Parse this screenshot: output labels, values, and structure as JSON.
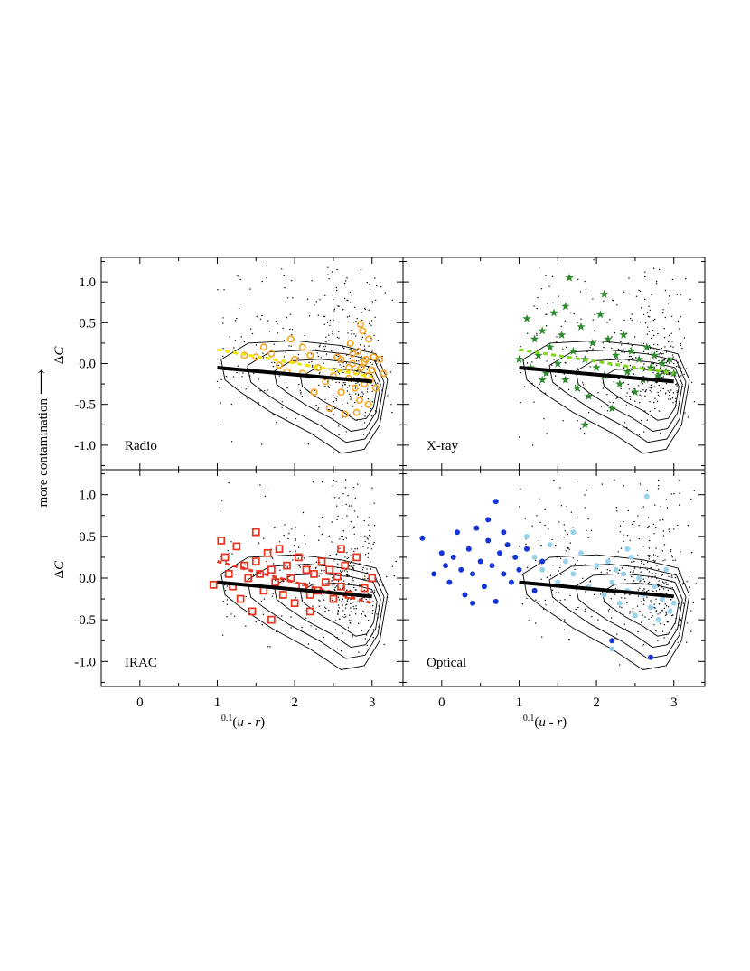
{
  "figure": {
    "side_label": "more contamination",
    "arrow_glyph": "⟶",
    "xlabel_prefix": "0.1",
    "xlabel_main": "(u - r)",
    "ylabel_main": "ΔC"
  },
  "chart_data": [
    {
      "type": "scatter",
      "panel": "top-left",
      "label": "Radio",
      "xlabel": "",
      "ylabel": "ΔC",
      "xlim": [
        -0.5,
        3.4
      ],
      "ylim": [
        -1.3,
        1.3
      ],
      "xticks": [],
      "yticks": [
        -1.0,
        -0.5,
        0.0,
        0.5,
        1.0
      ],
      "series": [
        {
          "marker": "open-circle",
          "color": "#f5a623",
          "points": [
            [
              1.35,
              0.1
            ],
            [
              1.5,
              0.08
            ],
            [
              1.7,
              0.12
            ],
            [
              1.8,
              -0.02
            ],
            [
              1.9,
              -0.1
            ],
            [
              2.0,
              0.05
            ],
            [
              2.1,
              -0.12
            ],
            [
              2.2,
              0.1
            ],
            [
              2.3,
              -0.05
            ],
            [
              2.4,
              -0.22
            ],
            [
              2.45,
              -0.55
            ],
            [
              2.5,
              -0.15
            ],
            [
              2.55,
              0.08
            ],
            [
              2.6,
              -0.35
            ],
            [
              2.65,
              -0.62
            ],
            [
              2.7,
              -0.18
            ],
            [
              2.72,
              0.25
            ],
            [
              2.75,
              0.0
            ],
            [
              2.78,
              -0.3
            ],
            [
              2.8,
              -0.1
            ],
            [
              2.82,
              0.15
            ],
            [
              2.84,
              -0.45
            ],
            [
              2.86,
              -0.05
            ],
            [
              2.88,
              0.4
            ],
            [
              2.9,
              -0.25
            ],
            [
              2.92,
              0.05
            ],
            [
              2.94,
              -0.15
            ],
            [
              2.96,
              0.3
            ],
            [
              2.98,
              -0.2
            ],
            [
              3.0,
              -0.08
            ],
            [
              3.02,
              0.08
            ],
            [
              3.05,
              -0.3
            ],
            [
              3.1,
              0.05
            ],
            [
              3.15,
              -0.12
            ],
            [
              2.85,
              0.48
            ],
            [
              2.7,
              -0.05
            ],
            [
              2.6,
              0.05
            ],
            [
              1.6,
              0.2
            ],
            [
              1.95,
              0.3
            ],
            [
              2.25,
              -0.35
            ],
            [
              2.1,
              0.2
            ],
            [
              2.8,
              -0.6
            ],
            [
              2.95,
              -0.5
            ],
            [
              2.75,
              0.12
            ],
            [
              2.9,
              0.02
            ]
          ]
        },
        {
          "marker": "dashed-line",
          "color": "#f2e600",
          "points": [
            [
              1.0,
              0.17
            ],
            [
              3.0,
              -0.16
            ]
          ]
        },
        {
          "marker": "thick-line",
          "color": "#000000",
          "points": [
            [
              1.0,
              -0.05
            ],
            [
              3.0,
              -0.22
            ]
          ]
        }
      ]
    },
    {
      "type": "scatter",
      "panel": "top-right",
      "label": "X-ray",
      "xlabel": "",
      "ylabel": "",
      "xlim": [
        -0.5,
        3.4
      ],
      "ylim": [
        -1.3,
        1.3
      ],
      "xticks": [],
      "yticks": [],
      "series": [
        {
          "marker": "star",
          "color": "#2e8b2e",
          "points": [
            [
              1.0,
              0.05
            ],
            [
              1.1,
              0.55
            ],
            [
              1.15,
              -0.05
            ],
            [
              1.2,
              0.3
            ],
            [
              1.25,
              0.1
            ],
            [
              1.3,
              0.4
            ],
            [
              1.35,
              -0.12
            ],
            [
              1.4,
              0.2
            ],
            [
              1.45,
              0.62
            ],
            [
              1.5,
              0.0
            ],
            [
              1.55,
              0.35
            ],
            [
              1.6,
              -0.2
            ],
            [
              1.65,
              1.05
            ],
            [
              1.7,
              0.15
            ],
            [
              1.75,
              -0.3
            ],
            [
              1.8,
              0.45
            ],
            [
              1.85,
              0.05
            ],
            [
              1.9,
              -0.4
            ],
            [
              1.95,
              0.25
            ],
            [
              2.0,
              -0.05
            ],
            [
              2.05,
              0.6
            ],
            [
              2.1,
              -0.15
            ],
            [
              2.15,
              0.3
            ],
            [
              2.2,
              -0.55
            ],
            [
              2.25,
              0.1
            ],
            [
              2.3,
              -0.25
            ],
            [
              2.35,
              0.35
            ],
            [
              2.4,
              -0.1
            ],
            [
              2.45,
              0.15
            ],
            [
              2.5,
              -0.35
            ],
            [
              2.55,
              0.05
            ],
            [
              2.6,
              -0.2
            ],
            [
              2.65,
              0.2
            ],
            [
              2.7,
              -0.05
            ],
            [
              2.75,
              0.1
            ],
            [
              2.8,
              -0.15
            ],
            [
              2.85,
              0.0
            ],
            [
              2.9,
              -0.1
            ],
            [
              1.85,
              -0.75
            ],
            [
              2.1,
              0.85
            ],
            [
              3.0,
              -0.12
            ],
            [
              2.95,
              0.05
            ],
            [
              1.3,
              -0.2
            ],
            [
              1.6,
              0.7
            ]
          ]
        },
        {
          "marker": "dashed-line",
          "color": "#7fd61a",
          "points": [
            [
              1.0,
              0.17
            ],
            [
              3.0,
              -0.12
            ]
          ]
        },
        {
          "marker": "thick-line",
          "color": "#000000",
          "points": [
            [
              1.0,
              -0.05
            ],
            [
              3.0,
              -0.22
            ]
          ]
        }
      ]
    },
    {
      "type": "scatter",
      "panel": "bottom-left",
      "label": "IRAC",
      "xlabel": "0.1(u - r)",
      "ylabel": "ΔC",
      "xlim": [
        -0.5,
        3.4
      ],
      "ylim": [
        -1.3,
        1.3
      ],
      "xticks": [
        0,
        1,
        2,
        3
      ],
      "yticks": [
        -1.0,
        -0.5,
        0.0,
        0.5,
        1.0
      ],
      "series": [
        {
          "marker": "open-square",
          "color": "#e8321c",
          "points": [
            [
              0.95,
              -0.08
            ],
            [
              1.05,
              0.45
            ],
            [
              1.1,
              0.25
            ],
            [
              1.15,
              0.05
            ],
            [
              1.2,
              -0.1
            ],
            [
              1.25,
              0.38
            ],
            [
              1.3,
              -0.25
            ],
            [
              1.35,
              0.15
            ],
            [
              1.4,
              0.0
            ],
            [
              1.45,
              -0.4
            ],
            [
              1.5,
              0.2
            ],
            [
              1.55,
              0.05
            ],
            [
              1.6,
              -0.15
            ],
            [
              1.65,
              0.3
            ],
            [
              1.7,
              0.1
            ],
            [
              1.75,
              -0.05
            ],
            [
              1.8,
              0.35
            ],
            [
              1.85,
              -0.2
            ],
            [
              1.9,
              0.15
            ],
            [
              1.95,
              0.0
            ],
            [
              2.0,
              -0.3
            ],
            [
              2.05,
              0.25
            ],
            [
              2.1,
              -0.1
            ],
            [
              2.15,
              0.1
            ],
            [
              2.2,
              -0.2
            ],
            [
              2.25,
              0.05
            ],
            [
              2.3,
              -0.15
            ],
            [
              2.35,
              0.2
            ],
            [
              2.4,
              -0.05
            ],
            [
              2.45,
              0.1
            ],
            [
              2.5,
              -0.25
            ],
            [
              2.55,
              0.02
            ],
            [
              2.6,
              -0.1
            ],
            [
              2.65,
              0.15
            ],
            [
              2.7,
              -0.2
            ],
            [
              2.8,
              0.25
            ],
            [
              2.9,
              -0.12
            ],
            [
              3.0,
              0.0
            ],
            [
              1.5,
              0.55
            ],
            [
              2.6,
              0.35
            ],
            [
              1.7,
              -0.5
            ],
            [
              2.2,
              -0.4
            ]
          ]
        },
        {
          "marker": "dashed-line",
          "color": "#e8321c",
          "points": [
            [
              1.0,
              0.2
            ],
            [
              3.0,
              -0.3
            ]
          ]
        },
        {
          "marker": "thick-line",
          "color": "#000000",
          "points": [
            [
              1.0,
              -0.05
            ],
            [
              3.0,
              -0.22
            ]
          ]
        }
      ]
    },
    {
      "type": "scatter",
      "panel": "bottom-right",
      "label": "Optical",
      "xlabel": "0.1(u - r)",
      "ylabel": "",
      "xlim": [
        -0.5,
        3.4
      ],
      "ylim": [
        -1.3,
        1.3
      ],
      "xticks": [
        0,
        1,
        2,
        3
      ],
      "yticks": [],
      "series": [
        {
          "marker": "filled-circle",
          "color": "#1535d6",
          "points": [
            [
              -0.25,
              0.48
            ],
            [
              -0.1,
              0.05
            ],
            [
              0.0,
              0.3
            ],
            [
              0.05,
              0.15
            ],
            [
              0.1,
              -0.05
            ],
            [
              0.15,
              0.25
            ],
            [
              0.2,
              0.55
            ],
            [
              0.25,
              0.1
            ],
            [
              0.3,
              -0.2
            ],
            [
              0.35,
              0.35
            ],
            [
              0.4,
              0.05
            ],
            [
              0.45,
              0.6
            ],
            [
              0.5,
              0.2
            ],
            [
              0.55,
              -0.1
            ],
            [
              0.6,
              0.45
            ],
            [
              0.65,
              0.15
            ],
            [
              0.7,
              0.92
            ],
            [
              0.75,
              0.3
            ],
            [
              0.8,
              0.05
            ],
            [
              0.85,
              0.4
            ],
            [
              0.9,
              -0.05
            ],
            [
              0.95,
              0.25
            ],
            [
              1.0,
              0.1
            ],
            [
              1.1,
              0.35
            ],
            [
              1.2,
              -0.15
            ],
            [
              1.3,
              0.2
            ],
            [
              0.4,
              -0.3
            ],
            [
              0.7,
              -0.28
            ],
            [
              0.6,
              0.7
            ],
            [
              2.2,
              -0.75
            ],
            [
              2.7,
              -0.95
            ],
            [
              0.8,
              0.55
            ]
          ]
        },
        {
          "marker": "filled-circle",
          "color": "#9ad3ec",
          "points": [
            [
              1.1,
              0.5
            ],
            [
              1.2,
              0.25
            ],
            [
              1.3,
              0.1
            ],
            [
              1.4,
              0.4
            ],
            [
              1.5,
              -0.05
            ],
            [
              1.6,
              0.2
            ],
            [
              1.7,
              0.05
            ],
            [
              1.8,
              0.3
            ],
            [
              1.9,
              -0.1
            ],
            [
              2.0,
              0.15
            ],
            [
              2.1,
              -0.2
            ],
            [
              2.15,
              0.2
            ],
            [
              2.2,
              -0.05
            ],
            [
              2.25,
              0.1
            ],
            [
              2.3,
              -0.3
            ],
            [
              2.35,
              0.05
            ],
            [
              2.4,
              -0.15
            ],
            [
              2.45,
              0.25
            ],
            [
              2.5,
              -0.45
            ],
            [
              2.55,
              0.0
            ],
            [
              2.6,
              -0.2
            ],
            [
              2.65,
              0.98
            ],
            [
              2.7,
              -0.35
            ],
            [
              2.75,
              -0.1
            ],
            [
              2.8,
              -0.5
            ],
            [
              2.85,
              -0.25
            ],
            [
              2.9,
              0.1
            ],
            [
              2.95,
              -0.4
            ],
            [
              3.0,
              -0.3
            ],
            [
              2.2,
              -0.85
            ],
            [
              1.7,
              0.55
            ],
            [
              2.4,
              0.35
            ]
          ]
        },
        {
          "marker": "thick-line",
          "color": "#000000",
          "points": [
            [
              1.0,
              -0.05
            ],
            [
              3.0,
              -0.22
            ]
          ]
        }
      ]
    }
  ]
}
